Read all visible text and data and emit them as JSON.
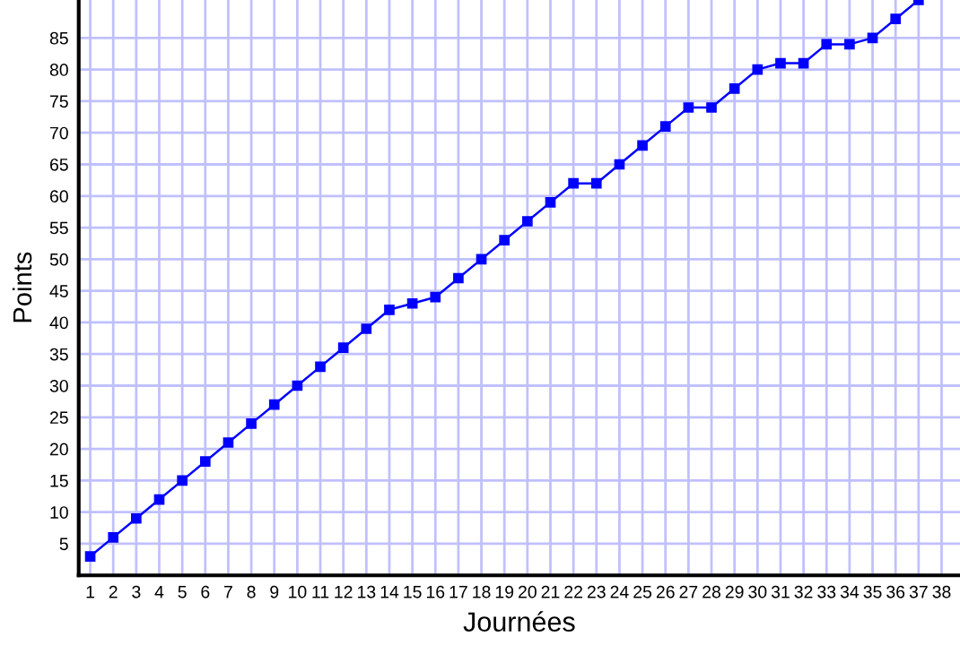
{
  "chart_data": {
    "type": "line",
    "xlabel": "Journées",
    "ylabel": "Points",
    "x": [
      1,
      2,
      3,
      4,
      5,
      6,
      7,
      8,
      9,
      10,
      11,
      12,
      13,
      14,
      15,
      16,
      17,
      18,
      19,
      20,
      21,
      22,
      23,
      24,
      25,
      26,
      27,
      28,
      29,
      30,
      31,
      32,
      33,
      34,
      35,
      36,
      37
    ],
    "series": [
      {
        "color": "#0000ff",
        "values": [
          3,
          6,
          9,
          12,
          15,
          18,
          21,
          24,
          27,
          30,
          33,
          36,
          39,
          42,
          43,
          44,
          47,
          50,
          53,
          56,
          59,
          62,
          62,
          65,
          68,
          71,
          74,
          74,
          77,
          80,
          81,
          81,
          84,
          84,
          85,
          88,
          91
        ]
      }
    ],
    "xlim": [
      0.5,
      38.8
    ],
    "ylim": [
      0,
      91
    ],
    "xticks": [
      1,
      2,
      3,
      4,
      5,
      6,
      7,
      8,
      9,
      10,
      11,
      12,
      13,
      14,
      15,
      16,
      17,
      18,
      19,
      20,
      21,
      22,
      23,
      24,
      25,
      26,
      27,
      28,
      29,
      30,
      31,
      32,
      33,
      34,
      35,
      36,
      37,
      38
    ],
    "yticks": [
      5,
      10,
      15,
      20,
      25,
      30,
      35,
      40,
      45,
      50,
      55,
      60,
      65,
      70,
      75,
      80,
      85
    ],
    "grid": true,
    "marker": "square",
    "line_style": "solid",
    "legend": false
  }
}
